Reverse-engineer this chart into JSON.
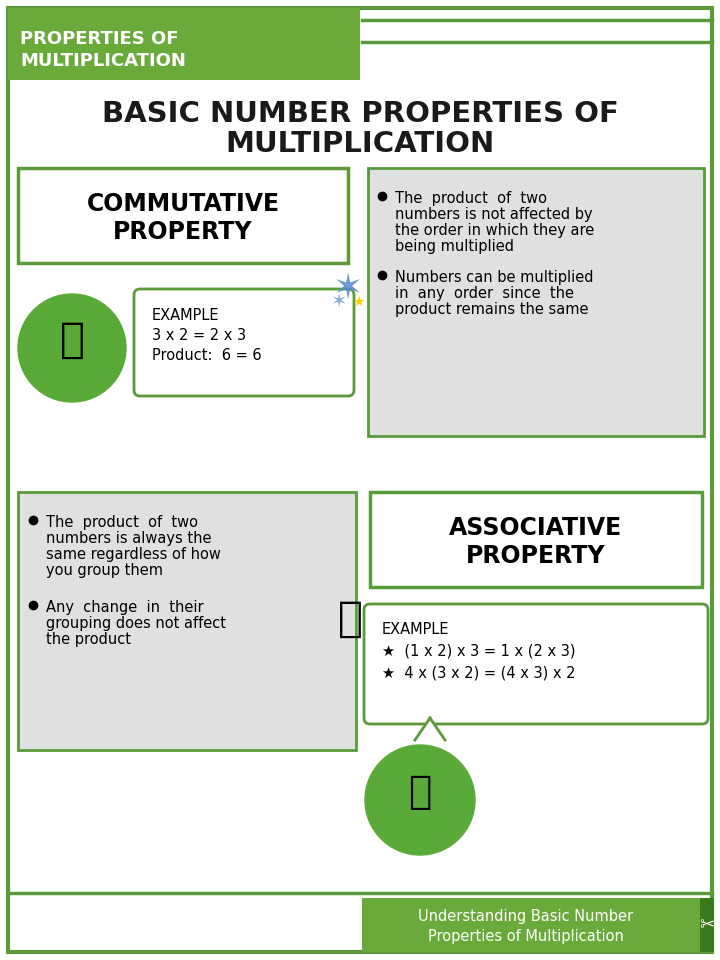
{
  "bg_color": "#ffffff",
  "border_color": "#5a9a3a",
  "header_bg": "#6aaa3a",
  "header_text_line1": "PROPERTIES OF",
  "header_text_line2": "MULTIPLICATION",
  "header_text_color": "#ffffff",
  "main_title_line1": "BASIC NUMBER PROPERTIES OF",
  "main_title_line2": "MULTIPLICATION",
  "main_title_color": "#1a1a1a",
  "commutative_title_line1": "COMMUTATIVE",
  "commutative_title_line2": "PROPERTY",
  "commutative_example_title": "EXAMPLE",
  "commutative_example_line1": "3 x 2 = 2 x 3",
  "commutative_example_line2": "Product:  6 = 6",
  "commutative_bullet1_line1": "The  product  of  two",
  "commutative_bullet1_line2": "numbers is not affected by",
  "commutative_bullet1_line3": "the order in which they are",
  "commutative_bullet1_line4": "being multiplied",
  "commutative_bullet2_line1": "Numbers can be multiplied",
  "commutative_bullet2_line2": "in  any  order  since  the",
  "commutative_bullet2_line3": "product remains the same",
  "gray_bg": "#e0e0e0",
  "associative_title_line1": "ASSOCIATIVE",
  "associative_title_line2": "PROPERTY",
  "associative_example_title": "EXAMPLE",
  "associative_example_line1": "(1 x 2) x 3 = 1 x (2 x 3)",
  "associative_example_line2": "4 x (3 x 2) = (4 x 3) x 2",
  "associative_bullet1_line1": "The  product  of  two",
  "associative_bullet1_line2": "numbers is always the",
  "associative_bullet1_line3": "same regardless of how",
  "associative_bullet1_line4": "you group them",
  "associative_bullet2_line1": "Any  change  in  their",
  "associative_bullet2_line2": "grouping does not affect",
  "associative_bullet2_line3": "the product",
  "footer_bg": "#6aaa3a",
  "footer_text_line1": "Understanding Basic Number",
  "footer_text_line2": "Properties of Multiplication",
  "footer_text_color": "#ffffff",
  "green_dark": "#5a9a3a",
  "green_mid": "#6aaa3a",
  "green_darker": "#3a7a1a"
}
